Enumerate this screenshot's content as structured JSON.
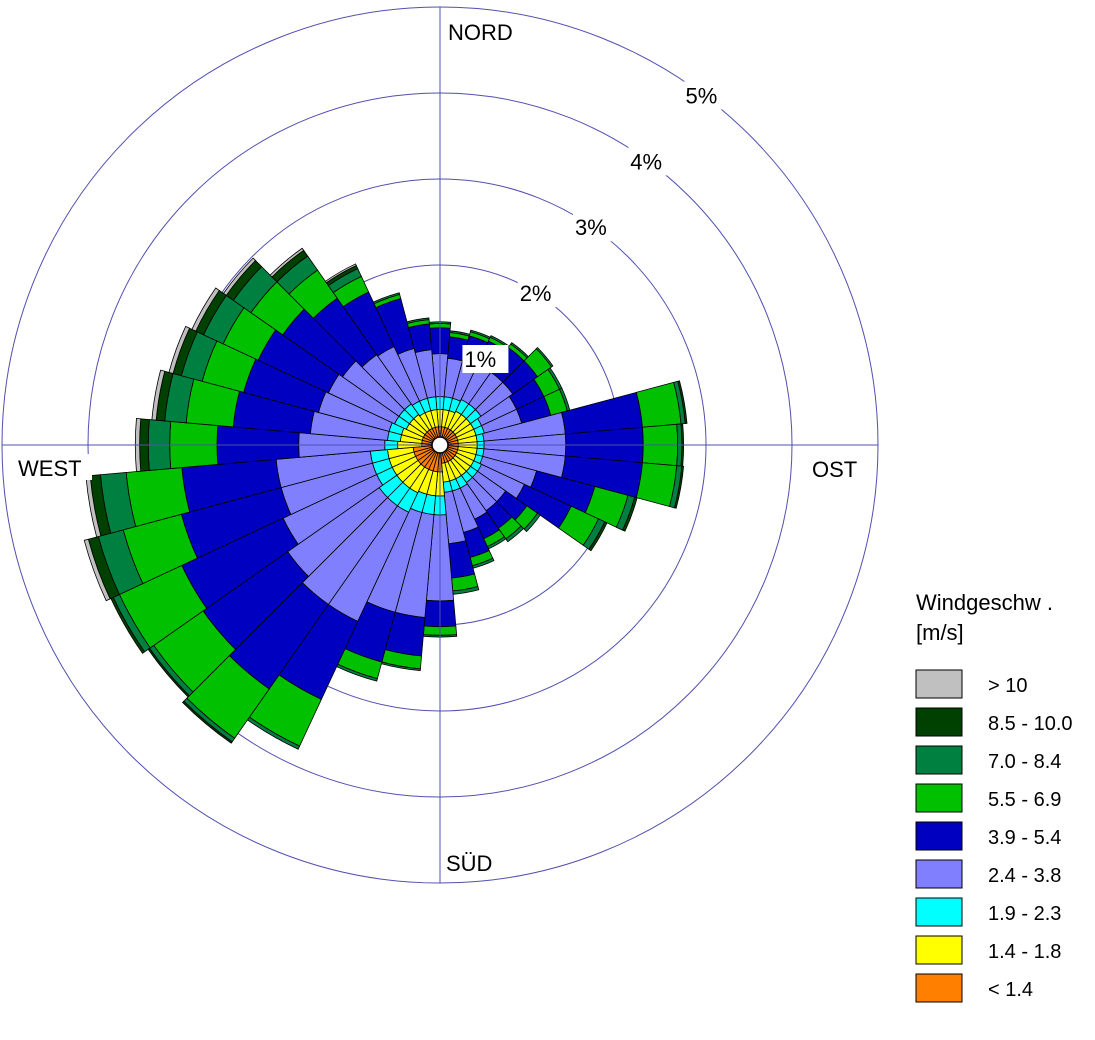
{
  "chart_data": {
    "type": "wind-rose",
    "title": "",
    "radial_unit": "%",
    "rings": [
      {
        "value": 1,
        "label": "1%"
      },
      {
        "value": 2,
        "label": "2%"
      },
      {
        "value": 3,
        "label": "3%"
      },
      {
        "value": 4,
        "label": "4%"
      },
      {
        "value": 5,
        "label": "5%"
      }
    ],
    "directions": {
      "north": "NORD",
      "east": "OST",
      "south": "SÜD",
      "west": "WEST"
    },
    "sector_count": 36,
    "sector_angles_deg": [
      0,
      10,
      20,
      30,
      40,
      50,
      60,
      70,
      80,
      90,
      100,
      110,
      120,
      130,
      140,
      150,
      160,
      170,
      180,
      190,
      200,
      210,
      220,
      230,
      240,
      250,
      260,
      270,
      280,
      290,
      300,
      310,
      320,
      330,
      340,
      350
    ],
    "legend": {
      "title": "Windgeschw .\n[m/s]",
      "title_lines": [
        "Windgeschw .",
        "[m/s]"
      ]
    },
    "series": [
      {
        "name": "< 1.4",
        "color": "#ff7f00",
        "values": [
          0.12,
          0.12,
          0.12,
          0.12,
          0.12,
          0.12,
          0.12,
          0.12,
          0.12,
          0.12,
          0.12,
          0.12,
          0.12,
          0.12,
          0.12,
          0.12,
          0.12,
          0.12,
          0.22,
          0.22,
          0.22,
          0.22,
          0.22,
          0.22,
          0.22,
          0.22,
          0.22,
          0.12,
          0.12,
          0.12,
          0.12,
          0.12,
          0.12,
          0.12,
          0.12,
          0.12
        ]
      },
      {
        "name": "1.4 - 1.8",
        "color": "#ffff00",
        "values": [
          0.2,
          0.2,
          0.2,
          0.22,
          0.22,
          0.22,
          0.22,
          0.22,
          0.22,
          0.22,
          0.22,
          0.22,
          0.22,
          0.22,
          0.22,
          0.22,
          0.22,
          0.22,
          0.28,
          0.28,
          0.28,
          0.3,
          0.3,
          0.3,
          0.3,
          0.3,
          0.3,
          0.28,
          0.25,
          0.25,
          0.22,
          0.22,
          0.22,
          0.2,
          0.2,
          0.2
        ]
      },
      {
        "name": "1.9 - 2.3",
        "color": "#00ffff",
        "values": [
          0.15,
          0.15,
          0.15,
          0.15,
          0.15,
          0.15,
          0.1,
          0.1,
          0.08,
          0.08,
          0.08,
          0.08,
          0.1,
          0.1,
          0.1,
          0.12,
          0.12,
          0.12,
          0.22,
          0.22,
          0.22,
          0.25,
          0.25,
          0.25,
          0.2,
          0.2,
          0.2,
          0.15,
          0.15,
          0.15,
          0.15,
          0.15,
          0.15,
          0.15,
          0.15,
          0.15
        ]
      },
      {
        "name": "2.4 - 3.8",
        "color": "#8080ff",
        "values": [
          0.5,
          0.45,
          0.45,
          0.45,
          0.45,
          0.45,
          0.45,
          0.45,
          0.95,
          0.95,
          0.95,
          0.65,
          0.55,
          0.4,
          0.4,
          0.4,
          0.5,
          0.6,
          1.0,
          1.2,
          1.2,
          1.4,
          1.4,
          1.3,
          1.2,
          1.1,
          1.1,
          1.0,
          0.9,
          0.85,
          0.85,
          0.8,
          0.7,
          0.7,
          0.6,
          0.55
        ]
      },
      {
        "name": "3.9 - 5.4",
        "color": "#0000c0",
        "values": [
          0.3,
          0.25,
          0.3,
          0.3,
          0.35,
          0.35,
          0.35,
          0.35,
          0.9,
          0.9,
          0.9,
          0.7,
          0.6,
          0.3,
          0.25,
          0.25,
          0.3,
          0.4,
          0.3,
          0.45,
          0.6,
          1.0,
          1.2,
          1.2,
          1.3,
          1.2,
          1.1,
          0.95,
          0.9,
          0.9,
          0.9,
          0.85,
          0.8,
          0.7,
          0.6,
          0.3
        ]
      },
      {
        "name": "5.5 - 6.9",
        "color": "#00c000",
        "values": [
          0.05,
          0.05,
          0.05,
          0.05,
          0.05,
          0.2,
          0.2,
          0.2,
          0.45,
          0.4,
          0.4,
          0.4,
          0.35,
          0.15,
          0.15,
          0.1,
          0.1,
          0.15,
          0.1,
          0.15,
          0.2,
          0.6,
          0.7,
          0.7,
          0.8,
          0.7,
          0.65,
          0.55,
          0.55,
          0.5,
          0.45,
          0.45,
          0.4,
          0.2,
          0.05,
          0.05
        ]
      },
      {
        "name": "7.0 - 8.4",
        "color": "#008040",
        "values": [
          0.02,
          0.02,
          0.02,
          0.02,
          0.02,
          0.02,
          0.03,
          0.03,
          0.05,
          0.05,
          0.06,
          0.08,
          0.08,
          0.04,
          0.04,
          0.03,
          0.03,
          0.04,
          0.02,
          0.02,
          0.03,
          0.04,
          0.05,
          0.06,
          0.08,
          0.3,
          0.3,
          0.25,
          0.25,
          0.25,
          0.25,
          0.25,
          0.2,
          0.1,
          0.02,
          0.02
        ]
      },
      {
        "name": "8.5 - 10.0",
        "color": "#004000",
        "values": [
          0.0,
          0.0,
          0.0,
          0.0,
          0.0,
          0.0,
          0.0,
          0.0,
          0.02,
          0.02,
          0.02,
          0.03,
          0.03,
          0.0,
          0.0,
          0.0,
          0.0,
          0.0,
          0.0,
          0.0,
          0.0,
          0.0,
          0.02,
          0.02,
          0.03,
          0.12,
          0.12,
          0.1,
          0.1,
          0.1,
          0.1,
          0.1,
          0.08,
          0.04,
          0.0,
          0.0
        ]
      },
      {
        "name": "> 10",
        "color": "#c0c0c0",
        "values": [
          0.0,
          0.0,
          0.0,
          0.0,
          0.0,
          0.0,
          0.0,
          0.0,
          0.0,
          0.0,
          0.0,
          0.0,
          0.0,
          0.0,
          0.0,
          0.0,
          0.0,
          0.0,
          0.0,
          0.0,
          0.0,
          0.0,
          0.0,
          0.0,
          0.0,
          0.05,
          0.05,
          0.05,
          0.05,
          0.05,
          0.05,
          0.04,
          0.03,
          0.02,
          0.0,
          0.0
        ]
      }
    ],
    "grid": true,
    "legend_placement": "right"
  }
}
